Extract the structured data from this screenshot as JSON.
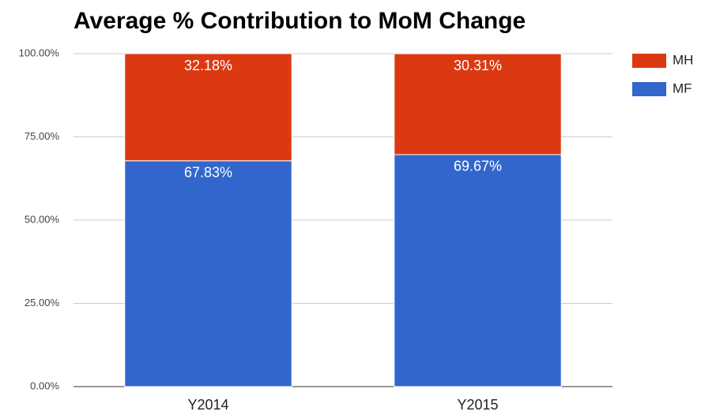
{
  "chart_data": {
    "type": "stacked_bar",
    "title": "Average % Contribution to MoM Change",
    "categories": [
      "Y2014",
      "Y2015"
    ],
    "series": [
      {
        "name": "MF",
        "color": "#3366cc",
        "values": [
          67.83,
          69.67
        ],
        "value_labels": [
          "67.83%",
          "69.67%"
        ]
      },
      {
        "name": "MH",
        "color": "#dc3912",
        "values": [
          32.18,
          30.31
        ],
        "value_labels": [
          "32.18%",
          "30.31%"
        ]
      }
    ],
    "ylim": [
      0,
      100
    ],
    "yticks": [
      {
        "value": 0,
        "label": "0.00%"
      },
      {
        "value": 25,
        "label": "25.00%"
      },
      {
        "value": 50,
        "label": "50.00%"
      },
      {
        "value": 75,
        "label": "75.00%"
      },
      {
        "value": 100,
        "label": "100.00%"
      }
    ],
    "grid": true,
    "legend": "right"
  }
}
